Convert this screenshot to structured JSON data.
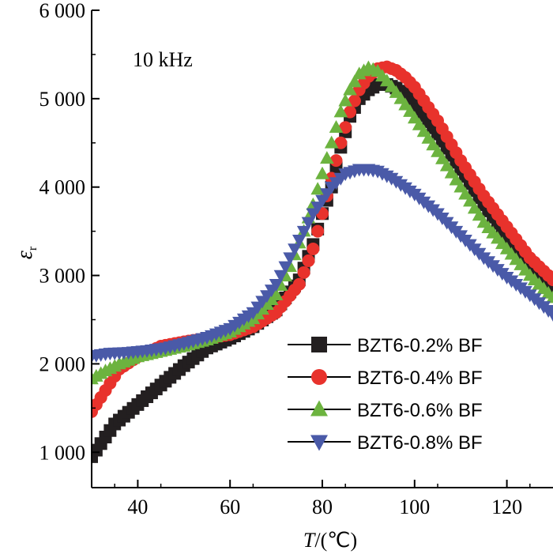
{
  "chart_data": {
    "type": "scatter",
    "title": "",
    "annotation": "10 kHz",
    "xlabel_var": "T",
    "xlabel_unit": "/(℃)",
    "ylabel_main": "ε",
    "ylabel_sub": "r",
    "xlim": [
      30,
      130
    ],
    "ylim": [
      600,
      6000
    ],
    "xticks": [
      40,
      60,
      80,
      100,
      120
    ],
    "xtick_labels": [
      "40",
      "60",
      "80",
      "100",
      "120"
    ],
    "yticks": [
      1000,
      2000,
      3000,
      4000,
      5000,
      6000
    ],
    "ytick_labels": [
      "1 000",
      "2 000",
      "3 000",
      "4 000",
      "5 000",
      "6 000"
    ],
    "legend_position": "bottom-right",
    "series": [
      {
        "name": "BZT6-0.2% BF",
        "marker": "square",
        "color": "#231f20",
        "points": [
          [
            30,
            950
          ],
          [
            35,
            1320
          ],
          [
            40,
            1540
          ],
          [
            45,
            1760
          ],
          [
            50,
            1980
          ],
          [
            55,
            2180
          ],
          [
            60,
            2290
          ],
          [
            65,
            2420
          ],
          [
            70,
            2610
          ],
          [
            75,
            2950
          ],
          [
            78,
            3350
          ],
          [
            80,
            3700
          ],
          [
            82,
            4000
          ],
          [
            84,
            4450
          ],
          [
            86,
            4800
          ],
          [
            88,
            5000
          ],
          [
            90,
            5100
          ],
          [
            92,
            5160
          ],
          [
            94,
            5160
          ],
          [
            96,
            5120
          ],
          [
            98,
            5050
          ],
          [
            100,
            4950
          ],
          [
            105,
            4600
          ],
          [
            110,
            4200
          ],
          [
            115,
            3800
          ],
          [
            120,
            3450
          ],
          [
            125,
            3150
          ],
          [
            130,
            2850
          ]
        ]
      },
      {
        "name": "BZT6-0.4% BF",
        "marker": "circle",
        "color": "#e8322c",
        "points": [
          [
            30,
            1460
          ],
          [
            33,
            1700
          ],
          [
            36,
            1940
          ],
          [
            40,
            2080
          ],
          [
            45,
            2200
          ],
          [
            50,
            2250
          ],
          [
            55,
            2290
          ],
          [
            60,
            2330
          ],
          [
            65,
            2420
          ],
          [
            70,
            2580
          ],
          [
            75,
            2900
          ],
          [
            78,
            3300
          ],
          [
            80,
            3700
          ],
          [
            82,
            4100
          ],
          [
            84,
            4500
          ],
          [
            86,
            4850
          ],
          [
            88,
            5100
          ],
          [
            90,
            5250
          ],
          [
            92,
            5340
          ],
          [
            94,
            5360
          ],
          [
            96,
            5320
          ],
          [
            98,
            5240
          ],
          [
            100,
            5130
          ],
          [
            105,
            4750
          ],
          [
            110,
            4300
          ],
          [
            115,
            3900
          ],
          [
            120,
            3550
          ],
          [
            125,
            3200
          ],
          [
            130,
            2950
          ]
        ]
      },
      {
        "name": "BZT6-0.6% BF",
        "marker": "triangle-up",
        "color": "#6cb33f",
        "points": [
          [
            30,
            1830
          ],
          [
            33,
            1920
          ],
          [
            36,
            2000
          ],
          [
            40,
            2080
          ],
          [
            45,
            2140
          ],
          [
            50,
            2200
          ],
          [
            55,
            2270
          ],
          [
            60,
            2360
          ],
          [
            65,
            2510
          ],
          [
            70,
            2780
          ],
          [
            73,
            3100
          ],
          [
            76,
            3500
          ],
          [
            78,
            3800
          ],
          [
            80,
            4150
          ],
          [
            82,
            4500
          ],
          [
            84,
            4850
          ],
          [
            86,
            5100
          ],
          [
            88,
            5280
          ],
          [
            90,
            5350
          ],
          [
            92,
            5310
          ],
          [
            94,
            5200
          ],
          [
            96,
            5070
          ],
          [
            98,
            4930
          ],
          [
            100,
            4780
          ],
          [
            105,
            4400
          ],
          [
            110,
            4000
          ],
          [
            115,
            3600
          ],
          [
            120,
            3300
          ],
          [
            125,
            3000
          ],
          [
            130,
            2750
          ]
        ]
      },
      {
        "name": "BZT6-0.8% BF",
        "marker": "triangle-down",
        "color": "#4a5aa8",
        "points": [
          [
            30,
            2090
          ],
          [
            34,
            2120
          ],
          [
            38,
            2130
          ],
          [
            42,
            2150
          ],
          [
            46,
            2180
          ],
          [
            50,
            2230
          ],
          [
            55,
            2300
          ],
          [
            60,
            2400
          ],
          [
            65,
            2580
          ],
          [
            70,
            2900
          ],
          [
            74,
            3300
          ],
          [
            78,
            3700
          ],
          [
            82,
            4000
          ],
          [
            85,
            4150
          ],
          [
            88,
            4200
          ],
          [
            90,
            4200
          ],
          [
            92,
            4180
          ],
          [
            95,
            4100
          ],
          [
            100,
            3920
          ],
          [
            105,
            3700
          ],
          [
            110,
            3450
          ],
          [
            115,
            3200
          ],
          [
            120,
            2980
          ],
          [
            125,
            2780
          ],
          [
            130,
            2560
          ]
        ]
      }
    ]
  }
}
